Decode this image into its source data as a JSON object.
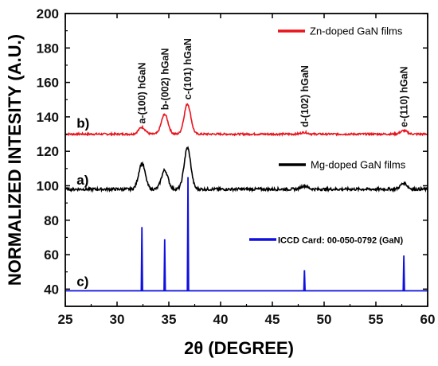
{
  "chart_data": {
    "type": "line",
    "xlabel": "2θ (DEGREE)",
    "ylabel": "NORMALIZED INTESITY (A.U.)",
    "xlim": [
      25,
      60
    ],
    "ylim": [
      30,
      200
    ],
    "x_ticks": [
      25,
      30,
      35,
      40,
      45,
      50,
      55,
      60
    ],
    "y_ticks": [
      40,
      60,
      80,
      100,
      120,
      140,
      160,
      180,
      200
    ],
    "grid": false,
    "legend_placement": "inline-right",
    "series": [
      {
        "name": "Zn-doped GaN films",
        "label": "b)",
        "color": "#e8141c",
        "baseline": 130,
        "peaks": [
          {
            "x": 32.4,
            "y": 134
          },
          {
            "x": 34.6,
            "y": 141.5
          },
          {
            "x": 36.8,
            "y": 147.5
          },
          {
            "x": 48.1,
            "y": 131
          },
          {
            "x": 57.7,
            "y": 132
          }
        ]
      },
      {
        "name": "Mg-doped GaN films",
        "label": "a)",
        "color": "#000000",
        "baseline": 98,
        "peaks": [
          {
            "x": 32.4,
            "y": 113
          },
          {
            "x": 34.6,
            "y": 109
          },
          {
            "x": 36.8,
            "y": 122
          },
          {
            "x": 48.1,
            "y": 100
          },
          {
            "x": 57.7,
            "y": 101.5
          }
        ]
      },
      {
        "name": "ICCD Card: 00-050-0792 (GaN)",
        "label": "c)",
        "color": "#1010e0",
        "baseline": 39,
        "peaks": [
          {
            "x": 32.4,
            "y": 76
          },
          {
            "x": 34.6,
            "y": 69
          },
          {
            "x": 36.85,
            "y": 105
          },
          {
            "x": 48.1,
            "y": 51
          },
          {
            "x": 57.7,
            "y": 59.5
          }
        ]
      }
    ],
    "peak_labels": [
      {
        "text": "a-(100) hGaN",
        "x": 32.4,
        "y": 136
      },
      {
        "text": "b-(002) hGaN",
        "x": 34.6,
        "y": 144
      },
      {
        "text": "c-(101) hGaN",
        "x": 36.8,
        "y": 150
      },
      {
        "text": "d-(102) hGaN",
        "x": 48.1,
        "y": 134
      },
      {
        "text": "e-(110) hGaN",
        "x": 57.7,
        "y": 134
      }
    ]
  }
}
